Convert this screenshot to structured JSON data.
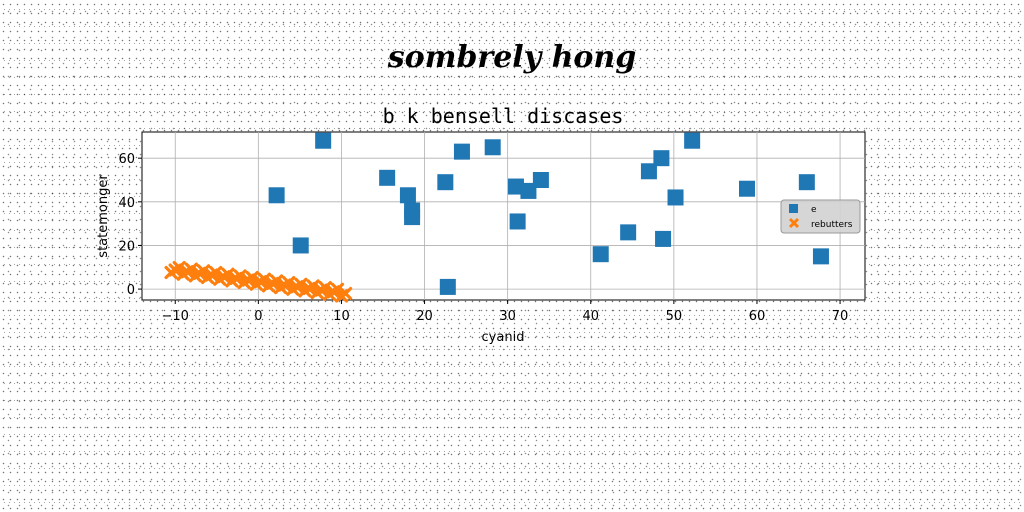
{
  "suptitle": "sombrely hong",
  "chart_data": {
    "type": "scatter",
    "title": "b k bensell discases",
    "xlabel": "cyanid",
    "ylabel": "statemonger",
    "xlim": [
      -14,
      73
    ],
    "ylim": [
      -5,
      72
    ],
    "xticks": [
      -10,
      0,
      10,
      20,
      30,
      40,
      50,
      60,
      70
    ],
    "yticks": [
      0,
      20,
      40,
      60
    ],
    "grid": true,
    "legend_position": "right",
    "series": [
      {
        "name": "e",
        "marker": "square",
        "color": "#1f77b4",
        "points": [
          [
            2.2,
            43
          ],
          [
            5.1,
            20
          ],
          [
            7.8,
            68
          ],
          [
            15.5,
            51
          ],
          [
            18.0,
            43
          ],
          [
            18.5,
            33
          ],
          [
            18.5,
            36
          ],
          [
            22.5,
            49
          ],
          [
            22.8,
            1
          ],
          [
            24.5,
            63
          ],
          [
            28.2,
            65
          ],
          [
            31.0,
            47
          ],
          [
            31.2,
            31
          ],
          [
            32.5,
            45
          ],
          [
            34.0,
            50
          ],
          [
            41.2,
            16
          ],
          [
            44.5,
            26
          ],
          [
            47.0,
            54
          ],
          [
            48.5,
            60
          ],
          [
            48.7,
            23
          ],
          [
            50.2,
            42
          ],
          [
            52.2,
            68
          ],
          [
            58.8,
            46
          ],
          [
            66.0,
            49
          ],
          [
            67.7,
            15
          ]
        ]
      },
      {
        "name": "rebutters",
        "marker": "x",
        "color": "#ff7f0e",
        "line": {
          "x_start": -10.5,
          "x_end": 10.5,
          "y_start": 9,
          "y_end": -2
        },
        "count": 44,
        "spread": 1.4
      }
    ]
  }
}
